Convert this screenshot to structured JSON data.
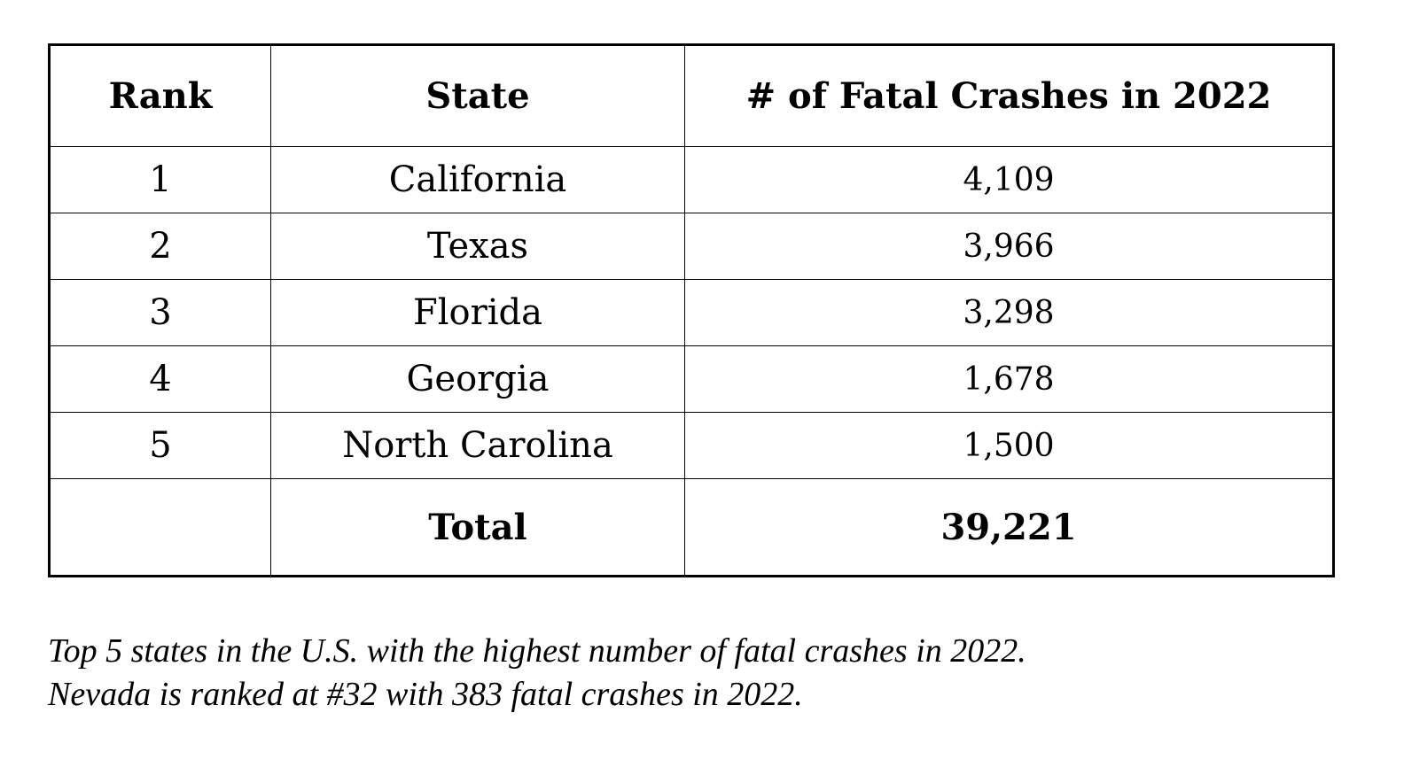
{
  "table": {
    "header": [
      "Rank",
      "State",
      "# of Fatal Crashes in 2022"
    ],
    "rows": [
      [
        "1",
        "California",
        "4,109"
      ],
      [
        "2",
        "Texas",
        "3,966"
      ],
      [
        "3",
        "Florida",
        "3,298"
      ],
      [
        "4",
        "Georgia",
        "1,678"
      ],
      [
        "5",
        "North Carolina",
        "1,500"
      ]
    ],
    "total": {
      "label": "Total",
      "value": "39,221"
    }
  },
  "caption": [
    "Top 5 states in the U.S. with the highest number of fatal crashes in 2022.",
    "Nevada is ranked at #32 with 383 fatal crashes in 2022."
  ]
}
